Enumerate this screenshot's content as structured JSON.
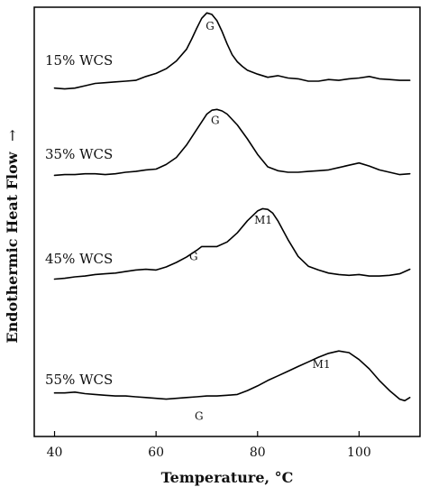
{
  "chart_data": {
    "type": "line",
    "title": "",
    "xlabel": "Temperature, °C",
    "ylabel": "Endothermic Heat Flow",
    "ylabel_arrow": "→",
    "xlim": [
      36,
      112
    ],
    "xticks": [
      40,
      60,
      80,
      100
    ],
    "y_numeric_axis": false,
    "grid": false,
    "legend": "none",
    "series": [
      {
        "name": "15% WCS",
        "x": [
          40,
          42,
          44,
          46,
          48,
          50,
          52,
          54,
          56,
          58,
          60,
          62,
          64,
          66,
          67,
          68,
          69,
          70,
          71,
          72,
          73,
          74,
          75,
          76,
          77,
          78,
          80,
          82,
          84,
          86,
          88,
          90,
          92,
          94,
          96,
          98,
          100,
          102,
          104,
          106,
          108,
          110
        ],
        "y": [
          0.05,
          0.04,
          0.05,
          0.08,
          0.11,
          0.12,
          0.13,
          0.14,
          0.15,
          0.2,
          0.24,
          0.3,
          0.4,
          0.55,
          0.68,
          0.82,
          0.95,
          1.02,
          1.0,
          0.92,
          0.78,
          0.62,
          0.48,
          0.39,
          0.33,
          0.28,
          0.23,
          0.19,
          0.21,
          0.18,
          0.17,
          0.14,
          0.14,
          0.16,
          0.15,
          0.17,
          0.18,
          0.2,
          0.17,
          0.16,
          0.15,
          0.15
        ],
        "annotations": [
          {
            "label": "G",
            "x": 71
          }
        ]
      },
      {
        "name": "35% WCS",
        "x": [
          40,
          42,
          44,
          46,
          48,
          50,
          52,
          54,
          56,
          58,
          60,
          62,
          64,
          66,
          68,
          70,
          71,
          72,
          73,
          74,
          76,
          78,
          80,
          82,
          84,
          86,
          88,
          90,
          92,
          94,
          96,
          98,
          100,
          102,
          104,
          106,
          108,
          110
        ],
        "y": [
          0.03,
          0.04,
          0.04,
          0.05,
          0.05,
          0.04,
          0.05,
          0.07,
          0.08,
          0.1,
          0.11,
          0.17,
          0.26,
          0.42,
          0.62,
          0.82,
          0.87,
          0.88,
          0.86,
          0.82,
          0.68,
          0.5,
          0.3,
          0.14,
          0.09,
          0.07,
          0.07,
          0.08,
          0.09,
          0.1,
          0.13,
          0.16,
          0.19,
          0.15,
          0.1,
          0.07,
          0.04,
          0.05
        ],
        "annotations": [
          {
            "label": "G",
            "x": 72
          }
        ]
      },
      {
        "name": "45% WCS",
        "x": [
          40,
          42,
          44,
          46,
          48,
          50,
          52,
          54,
          56,
          58,
          60,
          62,
          64,
          66,
          68,
          69,
          70,
          72,
          74,
          76,
          78,
          80,
          81,
          82,
          83,
          84,
          86,
          88,
          90,
          92,
          94,
          96,
          98,
          100,
          102,
          104,
          106,
          108,
          110
        ],
        "y": [
          0.03,
          0.04,
          0.06,
          0.07,
          0.09,
          0.1,
          0.11,
          0.13,
          0.15,
          0.16,
          0.15,
          0.19,
          0.25,
          0.32,
          0.41,
          0.46,
          0.46,
          0.46,
          0.52,
          0.64,
          0.8,
          0.93,
          0.96,
          0.95,
          0.9,
          0.8,
          0.55,
          0.33,
          0.2,
          0.15,
          0.11,
          0.09,
          0.08,
          0.09,
          0.07,
          0.07,
          0.08,
          0.1,
          0.16
        ],
        "annotations": [
          {
            "label": "G",
            "x": 69
          },
          {
            "label": "M1",
            "x": 82
          }
        ]
      },
      {
        "name": "55% WCS",
        "x": [
          40,
          42,
          44,
          46,
          48,
          50,
          52,
          54,
          56,
          58,
          60,
          62,
          64,
          66,
          68,
          70,
          72,
          74,
          76,
          78,
          80,
          82,
          84,
          86,
          88,
          90,
          92,
          94,
          96,
          98,
          100,
          102,
          104,
          106,
          108,
          109,
          110
        ],
        "y": [
          0.12,
          0.12,
          0.13,
          0.11,
          0.1,
          0.09,
          0.08,
          0.08,
          0.07,
          0.06,
          0.05,
          0.04,
          0.05,
          0.06,
          0.07,
          0.08,
          0.08,
          0.09,
          0.1,
          0.15,
          0.21,
          0.28,
          0.34,
          0.4,
          0.46,
          0.52,
          0.58,
          0.63,
          0.66,
          0.64,
          0.55,
          0.43,
          0.28,
          0.15,
          0.04,
          0.02,
          0.06
        ],
        "annotations": [
          {
            "label": "G",
            "x": 69
          },
          {
            "label": "M1",
            "x": 94
          }
        ]
      }
    ]
  }
}
